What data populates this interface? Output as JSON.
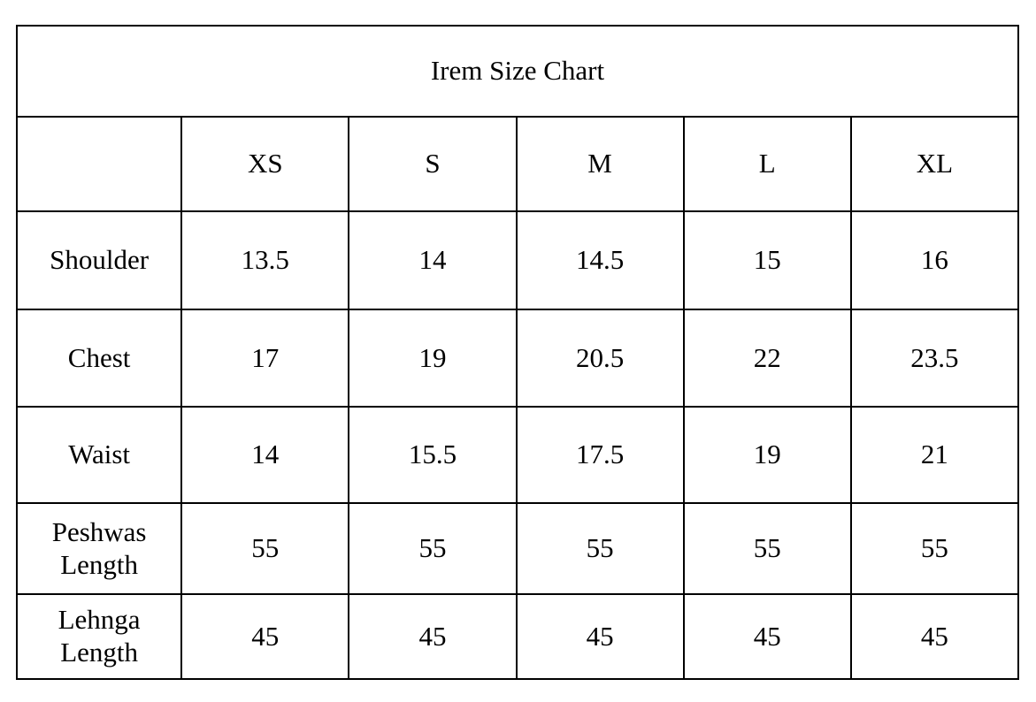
{
  "page": {
    "background_color": "#ffffff",
    "border_color": "#000000",
    "text_color": "#000000"
  },
  "table": {
    "title": "Irem Size Chart",
    "columns": [
      "",
      "XS",
      "S",
      "M",
      "L",
      "XL"
    ],
    "rows": [
      {
        "label": "Shoulder",
        "values": [
          "13.5",
          "14",
          "14.5",
          "15",
          "16"
        ]
      },
      {
        "label": "Chest",
        "values": [
          "17",
          "19",
          "20.5",
          "22",
          "23.5"
        ]
      },
      {
        "label": "Waist",
        "values": [
          "14",
          "15.5",
          "17.5",
          "19",
          "21"
        ]
      },
      {
        "label": "Peshwas Length",
        "values": [
          "55",
          "55",
          "55",
          "55",
          "55"
        ]
      },
      {
        "label": "Lehnga Length",
        "values": [
          "45",
          "45",
          "45",
          "45",
          "45"
        ]
      }
    ]
  }
}
